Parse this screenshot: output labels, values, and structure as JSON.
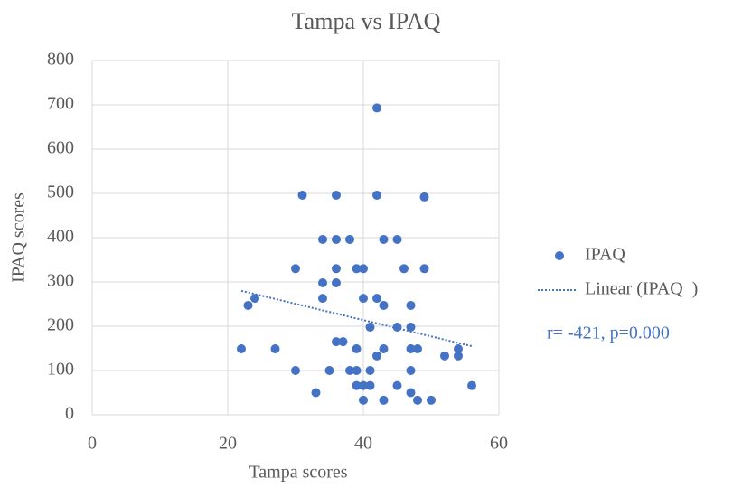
{
  "chart_data": {
    "type": "scatter",
    "title": "Tampa vs IPAQ",
    "x_label": "Tampa scores",
    "y_label": "IPAQ scores",
    "xlim": [
      0,
      60
    ],
    "xticks": [
      0,
      20,
      40,
      60
    ],
    "ylim": [
      0,
      800
    ],
    "yticks": [
      0,
      100,
      200,
      300,
      400,
      500,
      600,
      700,
      800
    ],
    "grid": true,
    "legend": "right",
    "series": [
      {
        "name": "IPAQ",
        "color": "#4472c4",
        "x": [
          42,
          31,
          36,
          42,
          49,
          34,
          36,
          38,
          43,
          45,
          30,
          36,
          39,
          40,
          46,
          49,
          34,
          36,
          34,
          40,
          42,
          24,
          23,
          43,
          47,
          41,
          45,
          47,
          36,
          37,
          22,
          27,
          39,
          43,
          47,
          48,
          54,
          42,
          52,
          54,
          30,
          35,
          38,
          39,
          41,
          47,
          39,
          40,
          41,
          45,
          56,
          33,
          47,
          40,
          43,
          48,
          50
        ],
        "values": [
          693,
          496,
          496,
          496,
          492,
          396,
          396,
          396,
          396,
          396,
          330,
          330,
          330,
          330,
          330,
          330,
          298,
          298,
          263,
          263,
          263,
          263,
          247,
          247,
          247,
          198,
          198,
          198,
          165,
          165,
          149,
          149,
          149,
          149,
          149,
          149,
          149,
          133,
          133,
          133,
          100,
          100,
          100,
          100,
          100,
          100,
          66,
          66,
          66,
          66,
          66,
          50,
          50,
          33,
          33,
          33,
          33
        ]
      }
    ],
    "trendline": {
      "name": "Linear (IPAQ  )",
      "color": "#4472c4",
      "x": [
        22,
        56
      ],
      "values": [
        280,
        155
      ]
    },
    "annotation": "r= -421, p=0.000"
  }
}
